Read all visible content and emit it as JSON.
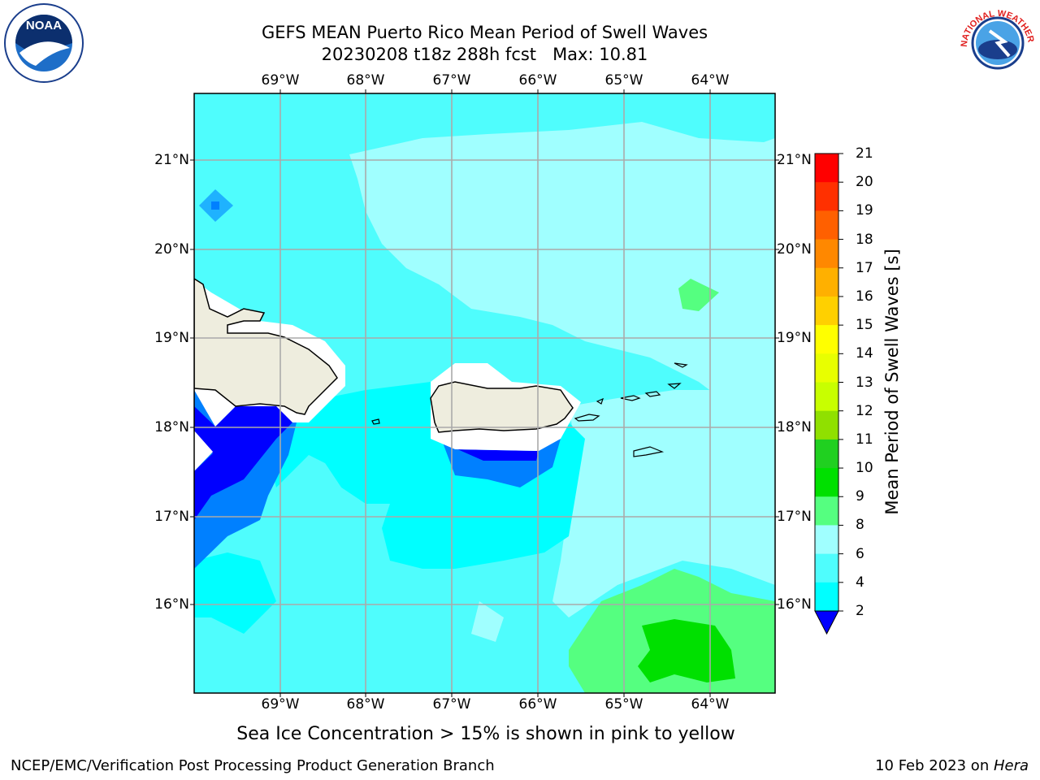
{
  "title": {
    "line1": "GEFS MEAN Puerto Rico Mean Period of Swell Waves",
    "line2": "20230208 t18z 288h fcst   Max: 10.81"
  },
  "longitude_labels": [
    "69°W",
    "68°W",
    "67°W",
    "66°W",
    "65°W",
    "64°W"
  ],
  "latitude_labels": [
    "21°N",
    "20°N",
    "19°N",
    "18°N",
    "17°N",
    "16°N"
  ],
  "colorbar": {
    "title": "Mean Period of Swell Waves [s]",
    "ticks": [
      "21",
      "20",
      "19",
      "18",
      "17",
      "16",
      "15",
      "14",
      "13",
      "12",
      "11",
      "10",
      "9",
      "8",
      "6",
      "4",
      "2"
    ],
    "levels": [
      {
        "value": "2-4",
        "color": "#0080ff"
      },
      {
        "value": "4-6",
        "color": "#00ffff"
      },
      {
        "value": "6-8",
        "color": "#4ffdfd"
      },
      {
        "value": "8-9",
        "color": "#a0ffff"
      },
      {
        "value": "9-10",
        "color": "#55ff80"
      },
      {
        "value": "10-11",
        "color": "#00e000"
      },
      {
        "value": "11-12",
        "color": "#20d020"
      },
      {
        "value": "12-13",
        "color": "#90e000"
      },
      {
        "value": "13-14",
        "color": "#c8ff00"
      },
      {
        "value": "14-15",
        "color": "#e8ff00"
      },
      {
        "value": "15-16",
        "color": "#ffff00"
      },
      {
        "value": "16-17",
        "color": "#ffd000"
      },
      {
        "value": "17-18",
        "color": "#ffb000"
      },
      {
        "value": "18-19",
        "color": "#ff8800"
      },
      {
        "value": "19-20",
        "color": "#ff6000"
      },
      {
        "value": "20-21",
        "color": "#ff3000"
      },
      {
        "value": "21",
        "color": "#ff0000"
      }
    ],
    "under_color": "#0000ff"
  },
  "map_colors": {
    "land": "#eeedde",
    "deep_blue": "#0000ff",
    "blue": "#0080ff",
    "cyan": "#00ffff",
    "light_cyan": "#4ffdfd",
    "pale_cyan": "#a0ffff",
    "green": "#55ff80",
    "bright_green": "#00e000",
    "grid": "#aaaaaa"
  },
  "caption": "Sea Ice Concentration > 15% is shown in pink to yellow",
  "footer": {
    "left": "NCEP/EMC/Verification Post Processing Product Generation Branch",
    "right_date": "10 Feb 2023 on ",
    "right_machine": "Hera"
  },
  "logos": {
    "noaa_text": "NOAA",
    "nws_text": "NATIONAL WEATHER SERVICE"
  }
}
